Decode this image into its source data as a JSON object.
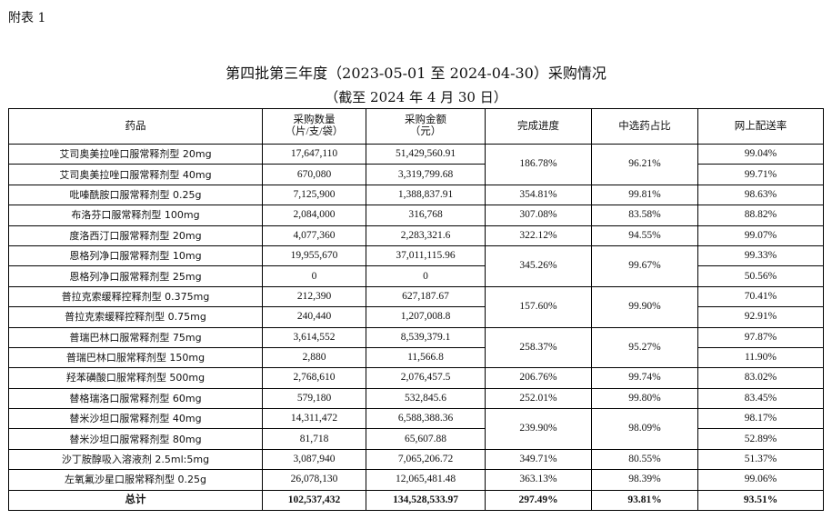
{
  "appendix_label": "附表 1",
  "title": "第四批第三年度（2023-05-01 至 2024-04-30）采购情况",
  "subtitle": "（截至 2024 年 4 月 30 日）",
  "table": {
    "headers": [
      "药品",
      "采购数量\n（片/支/袋）",
      "采购金额\n（元）",
      "完成进度",
      "中选药占比",
      "网上配送率"
    ],
    "rows": [
      {
        "drug": "艾司奥美拉唑口服常释剂型 20mg",
        "qty": "17,647,110",
        "amount": "51,429,560.91",
        "progress": "186.78%",
        "share": "96.21%",
        "span": 2,
        "rate": "99.04%"
      },
      {
        "drug": "艾司奥美拉唑口服常释剂型 40mg",
        "qty": "670,080",
        "amount": "3,319,799.68",
        "rate": "99.71%"
      },
      {
        "drug": "吡嗪酰胺口服常释剂型 0.25g",
        "qty": "7,125,900",
        "amount": "1,388,837.91",
        "progress": "354.81%",
        "share": "99.81%",
        "span": 1,
        "rate": "98.63%"
      },
      {
        "drug": "布洛芬口服常释剂型 100mg",
        "qty": "2,084,000",
        "amount": "316,768",
        "progress": "307.08%",
        "share": "83.58%",
        "span": 1,
        "rate": "88.82%"
      },
      {
        "drug": "度洛西汀口服常释剂型 20mg",
        "qty": "4,077,360",
        "amount": "2,283,321.6",
        "progress": "322.12%",
        "share": "94.55%",
        "span": 1,
        "rate": "99.07%"
      },
      {
        "drug": "恩格列净口服常释剂型 10mg",
        "qty": "19,955,670",
        "amount": "37,011,115.96",
        "progress": "345.26%",
        "share": "99.67%",
        "span": 2,
        "rate": "99.33%"
      },
      {
        "drug": "恩格列净口服常释剂型 25mg",
        "qty": "0",
        "amount": "0",
        "rate": "50.56%"
      },
      {
        "drug": "普拉克索缓释控释剂型 0.375mg",
        "qty": "212,390",
        "amount": "627,187.67",
        "progress": "157.60%",
        "share": "99.90%",
        "span": 2,
        "rate": "70.41%"
      },
      {
        "drug": "普拉克索缓释控释剂型 0.75mg",
        "qty": "240,440",
        "amount": "1,207,008.8",
        "rate": "92.91%"
      },
      {
        "drug": "普瑞巴林口服常释剂型 75mg",
        "qty": "3,614,552",
        "amount": "8,539,379.1",
        "progress": "258.37%",
        "share": "95.27%",
        "span": 2,
        "rate": "97.87%"
      },
      {
        "drug": "普瑞巴林口服常释剂型 150mg",
        "qty": "2,880",
        "amount": "11,566.8",
        "rate": "11.90%"
      },
      {
        "drug": "羟苯磺酸口服常释剂型 500mg",
        "qty": "2,768,610",
        "amount": "2,076,457.5",
        "progress": "206.76%",
        "share": "99.74%",
        "span": 1,
        "rate": "83.02%"
      },
      {
        "drug": "替格瑞洛口服常释剂型 60mg",
        "qty": "579,180",
        "amount": "532,845.6",
        "progress": "252.01%",
        "share": "99.80%",
        "span": 1,
        "rate": "83.45%"
      },
      {
        "drug": "替米沙坦口服常释剂型 40mg",
        "qty": "14,311,472",
        "amount": "6,588,388.36",
        "progress": "239.90%",
        "share": "98.09%",
        "span": 2,
        "rate": "98.17%"
      },
      {
        "drug": "替米沙坦口服常释剂型 80mg",
        "qty": "81,718",
        "amount": "65,607.88",
        "rate": "52.89%"
      },
      {
        "drug": "沙丁胺醇吸入溶液剂 2.5ml:5mg",
        "qty": "3,087,940",
        "amount": "7,065,206.72",
        "progress": "349.71%",
        "share": "80.55%",
        "span": 1,
        "rate": "51.37%"
      },
      {
        "drug": "左氧氟沙星口服常释剂型 0.25g",
        "qty": "26,078,130",
        "amount": "12,065,481.48",
        "progress": "363.13%",
        "share": "98.39%",
        "span": 1,
        "rate": "99.06%"
      }
    ],
    "total": {
      "label": "总计",
      "qty": "102,537,432",
      "amount": "134,528,533.97",
      "progress": "297.49%",
      "share": "93.81%",
      "rate": "93.51%"
    }
  }
}
